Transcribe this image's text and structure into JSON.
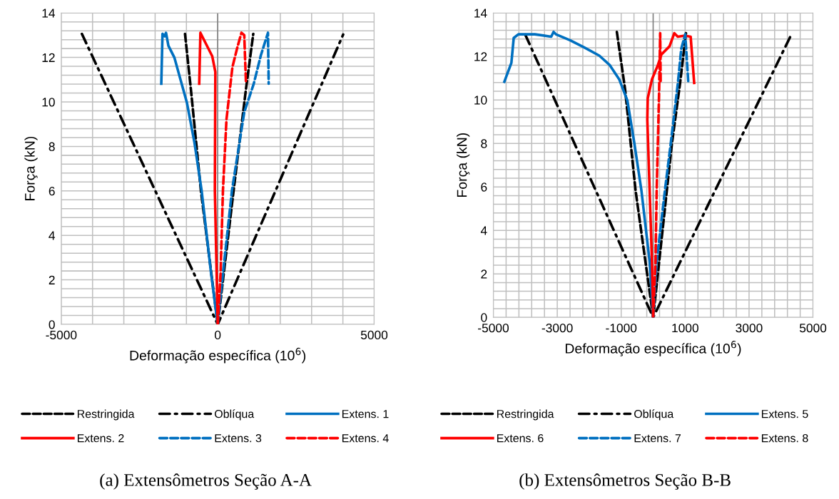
{
  "chart_data": [
    {
      "type": "line",
      "xlabel": "Deformação específica (10$^{6}$)",
      "ylabel": "Força (kN)",
      "annotations": [
        "(a) Extensômetros Seção A-A"
      ],
      "grid": true,
      "legend": "bottom",
      "xlim": [
        -5000,
        5000
      ],
      "xticks": [
        -5000,
        {
          "value": -4000,
          "label": null
        },
        {
          "value": -3000,
          "label": null
        },
        {
          "value": -2000,
          "label": null
        },
        {
          "value": -1000,
          "label": null
        },
        0,
        {
          "value": 1000,
          "label": null
        },
        {
          "value": 2000,
          "label": null
        },
        {
          "value": 3000,
          "label": null
        },
        {
          "value": 4000,
          "label": null
        },
        5000
      ],
      "ylim": [
        0,
        14
      ],
      "yticks": [
        0,
        {
          "value": 0.4,
          "label": null
        },
        {
          "value": 0.8,
          "label": null
        },
        {
          "value": 1.2,
          "label": null
        },
        {
          "value": 1.6,
          "label": null
        },
        2,
        {
          "value": 2.4,
          "label": null
        },
        {
          "value": 2.8,
          "label": null
        },
        {
          "value": 3.2,
          "label": null
        },
        {
          "value": 3.6,
          "label": null
        },
        4,
        {
          "value": 4.4,
          "label": null
        },
        {
          "value": 4.8,
          "label": null
        },
        {
          "value": 5.2,
          "label": null
        },
        {
          "value": 5.6,
          "label": null
        },
        6,
        {
          "value": 6.4,
          "label": null
        },
        {
          "value": 6.8,
          "label": null
        },
        {
          "value": 7.2,
          "label": null
        },
        {
          "value": 7.6,
          "label": null
        },
        8,
        {
          "value": 8.4,
          "label": null
        },
        {
          "value": 8.8,
          "label": null
        },
        {
          "value": 9.2,
          "label": null
        },
        {
          "value": 9.6,
          "label": null
        },
        10,
        {
          "value": 10.4,
          "label": null
        },
        {
          "value": 10.8,
          "label": null
        },
        {
          "value": 11.2,
          "label": null
        },
        {
          "value": 11.6,
          "label": null
        },
        12,
        {
          "value": 12.4,
          "label": null
        },
        {
          "value": 12.8,
          "label": null
        },
        {
          "value": 13.2,
          "label": null
        },
        {
          "value": 13.6,
          "label": null
        },
        14
      ],
      "ref_lines": [
        {
          "axis": "x",
          "value": 0,
          "label": null,
          "color": "#808080"
        }
      ],
      "series": [
        {
          "name": "Restringida",
          "color": "#000000",
          "line_style": "dashed",
          "x": [
            -1045,
            -856,
            -538,
            0,
            508,
            900,
            1136
          ],
          "values": [
            13.06,
            10.55,
            6.02,
            0,
            6.02,
            10.55,
            13.06
          ]
        },
        {
          "name": "Oblíqua",
          "color": "#000000",
          "line_style": "dashdot",
          "x": [
            -4340,
            0,
            4008
          ],
          "values": [
            13.06,
            0,
            13.03
          ]
        },
        {
          "name": "Extens. 1",
          "color": "#0070c0",
          "line_style": "solid",
          "x": [
            0,
            -212,
            -515,
            -742,
            -985,
            -1386,
            -1576,
            -1652,
            -1700,
            -1765,
            -1803
          ],
          "values": [
            0,
            2.29,
            6.02,
            8.16,
            9.97,
            12.0,
            12.53,
            13.11,
            12.95,
            13.06,
            10.82
          ]
        },
        {
          "name": "Extens. 2",
          "color": "#ff0000",
          "line_style": "solid",
          "x": [
            0,
            -91,
            -76,
            -174,
            -553,
            -591
          ],
          "values": [
            0,
            6.02,
            11.35,
            12.05,
            13.11,
            10.82
          ]
        },
        {
          "name": "Extens. 3",
          "color": "#0070c0",
          "line_style": "dashed",
          "x": [
            0,
            167,
            455,
            848,
            1152,
            1379,
            1606,
            1629
          ],
          "values": [
            0,
            2.29,
            6.02,
            9.54,
            10.82,
            12.1,
            13.11,
            10.82
          ]
        },
        {
          "name": "Extens. 4",
          "color": "#ff0000",
          "line_style": "dashed",
          "x": [
            0,
            91,
            167,
            280,
            470,
            621,
            758,
            848,
            902
          ],
          "values": [
            0,
            2.29,
            6.02,
            9.22,
            11.57,
            12.42,
            13.11,
            13.0,
            10.87
          ]
        }
      ]
    },
    {
      "type": "line",
      "xlabel": "Deformação específica (10$^{6}$)",
      "ylabel": "Força (kN)",
      "annotations": [
        "(b) Extensômetros Seção B-B"
      ],
      "grid": true,
      "legend": "bottom",
      "xlim": [
        -5000,
        5000
      ],
      "xticks": [
        -5000,
        {
          "value": -4600,
          "label": null
        },
        {
          "value": -4200,
          "label": null
        },
        {
          "value": -3800,
          "label": null
        },
        {
          "value": -3400,
          "label": null
        },
        -3000,
        {
          "value": -2600,
          "label": null
        },
        {
          "value": -2200,
          "label": null
        },
        {
          "value": -1800,
          "label": null
        },
        {
          "value": -1400,
          "label": null
        },
        -1000,
        {
          "value": -600,
          "label": null
        },
        {
          "value": -200,
          "label": null
        },
        {
          "value": 200,
          "label": null
        },
        {
          "value": 600,
          "label": null
        },
        1000,
        {
          "value": 1400,
          "label": null
        },
        {
          "value": 1800,
          "label": null
        },
        {
          "value": 2200,
          "label": null
        },
        {
          "value": 2600,
          "label": null
        },
        3000,
        {
          "value": 3400,
          "label": null
        },
        {
          "value": 3800,
          "label": null
        },
        {
          "value": 4200,
          "label": null
        },
        {
          "value": 4600,
          "label": null
        },
        5000
      ],
      "ylim": [
        0,
        14
      ],
      "yticks": [
        0,
        {
          "value": 0.4,
          "label": null
        },
        {
          "value": 0.8,
          "label": null
        },
        {
          "value": 1.2,
          "label": null
        },
        {
          "value": 1.6,
          "label": null
        },
        2,
        {
          "value": 2.4,
          "label": null
        },
        {
          "value": 2.8,
          "label": null
        },
        {
          "value": 3.2,
          "label": null
        },
        {
          "value": 3.6,
          "label": null
        },
        4,
        {
          "value": 4.4,
          "label": null
        },
        {
          "value": 4.8,
          "label": null
        },
        {
          "value": 5.2,
          "label": null
        },
        {
          "value": 5.6,
          "label": null
        },
        6,
        {
          "value": 6.4,
          "label": null
        },
        {
          "value": 6.8,
          "label": null
        },
        {
          "value": 7.2,
          "label": null
        },
        {
          "value": 7.6,
          "label": null
        },
        8,
        {
          "value": 8.4,
          "label": null
        },
        {
          "value": 8.8,
          "label": null
        },
        {
          "value": 9.2,
          "label": null
        },
        {
          "value": 9.6,
          "label": null
        },
        10,
        {
          "value": 10.4,
          "label": null
        },
        {
          "value": 10.8,
          "label": null
        },
        {
          "value": 11.2,
          "label": null
        },
        {
          "value": 11.6,
          "label": null
        },
        12,
        {
          "value": 12.4,
          "label": null
        },
        {
          "value": 12.8,
          "label": null
        },
        {
          "value": 13.2,
          "label": null
        },
        {
          "value": 13.6,
          "label": null
        },
        14
      ],
      "ref_lines": [
        {
          "axis": "x",
          "value": 0,
          "label": null,
          "color": "#808080"
        }
      ],
      "series": [
        {
          "name": "Restringida",
          "color": "#000000",
          "line_style": "dashed",
          "x": [
            -1136,
            -880,
            -550,
            0,
            587,
            843,
            1026
          ],
          "values": [
            13.13,
            10.51,
            5.83,
            0,
            8.0,
            10.78,
            13.07
          ]
        },
        {
          "name": "Oblíqua",
          "color": "#000000",
          "line_style": "dashdot",
          "x": [
            -4000,
            0,
            4326
          ],
          "values": [
            13.0,
            0,
            13.02
          ]
        },
        {
          "name": "Extens. 5",
          "color": "#0070c0",
          "line_style": "solid",
          "x": [
            0,
            -110,
            -367,
            -587,
            -806,
            -1063,
            -1356,
            -1686,
            -2163,
            -2603,
            -3043,
            -3116,
            -3189,
            -3702,
            -4216,
            -4362,
            -4435,
            -4545,
            -4655
          ],
          "values": [
            0,
            2.56,
            5.83,
            8.0,
            9.97,
            10.95,
            11.6,
            12.04,
            12.42,
            12.75,
            13.02,
            13.13,
            12.91,
            13.02,
            13.02,
            12.85,
            11.71,
            11.27,
            10.84
          ]
        },
        {
          "name": "Extens. 6",
          "color": "#ff0000",
          "line_style": "solid",
          "x": [
            0,
            -37,
            -110,
            -183,
            -169,
            -37,
            147,
            257,
            513,
            660,
            770,
            990,
            1173,
            1283
          ],
          "values": [
            0,
            2.56,
            5.83,
            9.1,
            10.08,
            10.95,
            11.6,
            12.09,
            12.47,
            13.07,
            12.91,
            12.96,
            12.91,
            10.78
          ]
        },
        {
          "name": "Extens. 7",
          "color": "#0070c0",
          "line_style": "dashed",
          "x": [
            0,
            110,
            367,
            550,
            770,
            880,
            1004,
            1100
          ],
          "values": [
            0,
            2.56,
            5.83,
            8.0,
            10.73,
            12.36,
            13.02,
            10.78
          ]
        },
        {
          "name": "Extens. 8",
          "color": "#ff0000",
          "line_style": "dashed",
          "x": [
            0,
            73,
            110,
            183,
            220,
            235
          ],
          "values": [
            0,
            2.56,
            5.83,
            10.19,
            13.07,
            10.78
          ]
        }
      ]
    }
  ]
}
